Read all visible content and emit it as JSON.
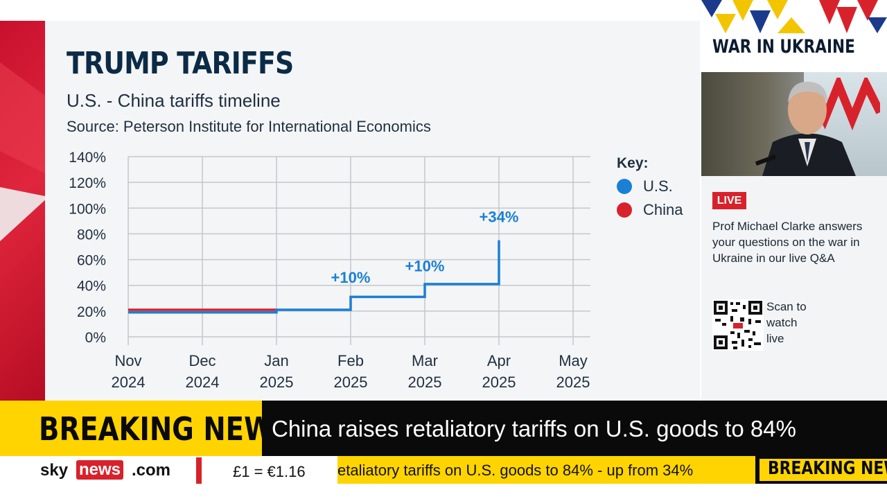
{
  "title": "TRUMP TARIFFS",
  "subtitle": "U.S. - China tariffs timeline",
  "source": "Source: Peterson Institute for International Economics",
  "key": {
    "title": "Key:",
    "items": [
      {
        "label": "U.S.",
        "color": "#1a7fd6"
      },
      {
        "label": "China",
        "color": "#d8222b"
      }
    ]
  },
  "chart_data": {
    "type": "line",
    "line_shape": "step",
    "y_ticks": [
      "140%",
      "120%",
      "100%",
      "80%",
      "60%",
      "40%",
      "20%",
      "0%"
    ],
    "ylim": [
      0,
      140
    ],
    "x_categories": [
      [
        "Nov",
        "2024"
      ],
      [
        "Dec",
        "2024"
      ],
      [
        "Jan",
        "2025"
      ],
      [
        "Feb",
        "2025"
      ],
      [
        "Mar",
        "2025"
      ],
      [
        "Apr",
        "2025"
      ],
      [
        "May",
        "2025"
      ]
    ],
    "grid": true,
    "legend_position": "right",
    "series": [
      {
        "name": "China",
        "color": "#d8222b",
        "points": [
          [
            0,
            21
          ],
          [
            2,
            21
          ]
        ]
      },
      {
        "name": "U.S.",
        "color": "#1a7fd6",
        "points": [
          [
            0,
            19
          ],
          [
            2,
            19
          ],
          [
            2,
            21
          ],
          [
            3,
            21
          ],
          [
            3,
            31
          ],
          [
            4,
            31
          ],
          [
            4,
            41
          ],
          [
            5,
            41
          ],
          [
            5,
            75
          ]
        ]
      }
    ],
    "annotations": [
      {
        "text": "+10%",
        "x": 3,
        "y": 42,
        "color": "#1a7fd6"
      },
      {
        "text": "+10%",
        "x": 4,
        "y": 51,
        "color": "#1a7fd6"
      },
      {
        "text": "+34%",
        "x": 5,
        "y": 89,
        "color": "#1a7fd6"
      }
    ]
  },
  "side_panel": {
    "section_title": "WAR IN UKRAINE",
    "live_label": "LIVE",
    "description": "Prof Michael Clarke answers your questions on the war in Ukraine in our live Q&A",
    "scan_lines": [
      "Scan to",
      "watch",
      "live"
    ]
  },
  "breaking": {
    "label": "BREAKING NEWS",
    "headline": "China raises retaliatory tariffs on U.S. goods to 84%"
  },
  "ticker": {
    "brand_sky": "sky",
    "brand_news": "news",
    "brand_com": ".com",
    "currency": "£1 = €1.16",
    "crawl": "etaliatory tariffs on U.S. goods to 84% - up from 34%",
    "crawl_label": "BREAKING NEW"
  },
  "colors": {
    "accent_red": "#d8222b",
    "breaking_yellow": "#ffd400",
    "us_blue": "#1a7fd6",
    "title_navy": "#0b2a45"
  }
}
